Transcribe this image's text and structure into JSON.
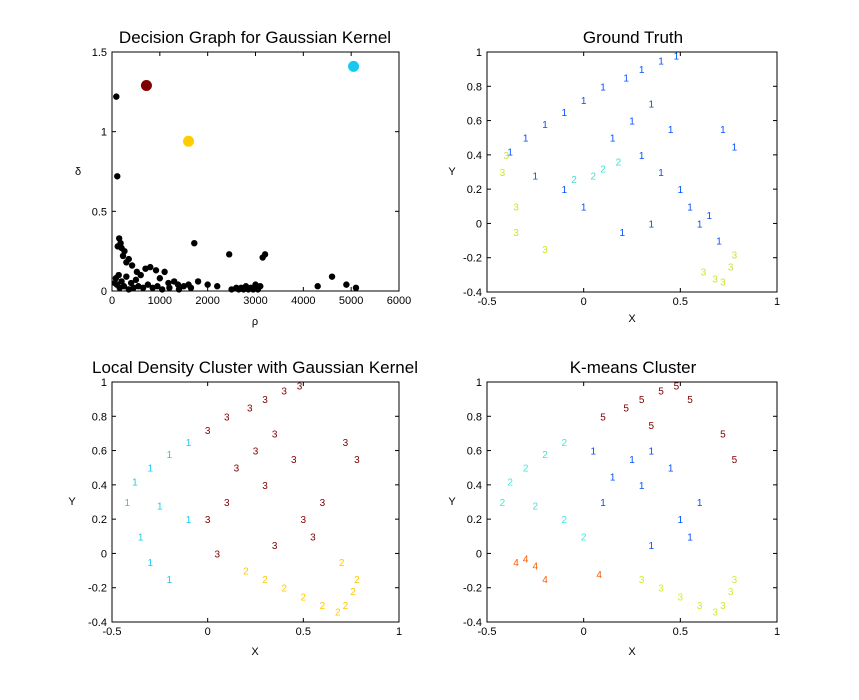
{
  "chart_data": [
    {
      "id": "decision",
      "type": "scatter",
      "title": "Decision Graph for Gaussian Kernel",
      "xlabel": "ρ",
      "ylabel": "δ",
      "xlim": [
        0,
        6000
      ],
      "ylim": [
        0,
        1.5
      ],
      "xticks": [
        "0",
        "1000",
        "2000",
        "3000",
        "4000",
        "5000",
        "6000"
      ],
      "yticks": [
        "0",
        "0.5",
        "1",
        "1.5"
      ],
      "points": [
        [
          90,
          1.22
        ],
        [
          110,
          0.72
        ],
        [
          120,
          0.28
        ],
        [
          150,
          0.33
        ],
        [
          180,
          0.3
        ],
        [
          200,
          0.27
        ],
        [
          230,
          0.22
        ],
        [
          260,
          0.25
        ],
        [
          300,
          0.18
        ],
        [
          350,
          0.2
        ],
        [
          420,
          0.16
        ],
        [
          520,
          0.12
        ],
        [
          600,
          0.1
        ],
        [
          700,
          0.14
        ],
        [
          800,
          0.15
        ],
        [
          920,
          0.13
        ],
        [
          1000,
          0.08
        ],
        [
          1100,
          0.12
        ],
        [
          1180,
          0.05
        ],
        [
          1300,
          0.06
        ],
        [
          1380,
          0.04
        ],
        [
          1500,
          0.03
        ],
        [
          1600,
          0.04
        ],
        [
          1720,
          0.3
        ],
        [
          1800,
          0.06
        ],
        [
          2000,
          0.04
        ],
        [
          2200,
          0.03
        ],
        [
          2450,
          0.23
        ],
        [
          2600,
          0.02
        ],
        [
          2700,
          0.02
        ],
        [
          2800,
          0.03
        ],
        [
          2900,
          0.02
        ],
        [
          3000,
          0.04
        ],
        [
          3050,
          0.02
        ],
        [
          3100,
          0.03
        ],
        [
          3150,
          0.21
        ],
        [
          3200,
          0.23
        ],
        [
          4300,
          0.03
        ],
        [
          4600,
          0.09
        ],
        [
          4900,
          0.04
        ],
        [
          5100,
          0.02
        ],
        [
          60,
          0.05
        ],
        [
          80,
          0.08
        ],
        [
          100,
          0.04
        ],
        [
          140,
          0.1
        ],
        [
          160,
          0.02
        ],
        [
          200,
          0.06
        ],
        [
          250,
          0.03
        ],
        [
          300,
          0.09
        ],
        [
          350,
          0.01
        ],
        [
          400,
          0.05
        ],
        [
          450,
          0.02
        ],
        [
          500,
          0.07
        ],
        [
          550,
          0.03
        ],
        [
          650,
          0.02
        ],
        [
          750,
          0.04
        ],
        [
          850,
          0.02
        ],
        [
          950,
          0.03
        ],
        [
          1050,
          0.01
        ],
        [
          1200,
          0.02
        ],
        [
          1400,
          0.01
        ],
        [
          1650,
          0.02
        ],
        [
          2500,
          0.01
        ],
        [
          2650,
          0.01
        ],
        [
          2750,
          0.01
        ],
        [
          2850,
          0.01
        ],
        [
          2950,
          0.01
        ],
        [
          3050,
          0.01
        ]
      ],
      "highlight": [
        {
          "x": 720,
          "y": 1.29,
          "color": "#7f0000"
        },
        {
          "x": 1600,
          "y": 0.94,
          "color": "#ffcc00"
        },
        {
          "x": 5050,
          "y": 1.41,
          "color": "#18c8ef"
        }
      ]
    },
    {
      "id": "ground",
      "type": "scatter",
      "title": "Ground Truth",
      "xlabel": "X",
      "ylabel": "Y",
      "xlim": [
        -0.5,
        1
      ],
      "ylim": [
        -0.4,
        1
      ],
      "xticks": [
        "-0.5",
        "0",
        "0.5",
        "1"
      ],
      "yticks": [
        "-0.4",
        "-0.2",
        "0",
        "0.2",
        "0.4",
        "0.6",
        "0.8",
        "1"
      ],
      "labels": [
        {
          "x": 0.48,
          "y": 0.98,
          "t": "1",
          "c": "#0050ff"
        },
        {
          "x": 0.4,
          "y": 0.95,
          "t": "1",
          "c": "#0050ff"
        },
        {
          "x": 0.3,
          "y": 0.9,
          "t": "1",
          "c": "#0050ff"
        },
        {
          "x": 0.22,
          "y": 0.85,
          "t": "1",
          "c": "#0050ff"
        },
        {
          "x": 0.1,
          "y": 0.8,
          "t": "1",
          "c": "#0050ff"
        },
        {
          "x": 0.0,
          "y": 0.72,
          "t": "1",
          "c": "#0050ff"
        },
        {
          "x": -0.1,
          "y": 0.65,
          "t": "1",
          "c": "#0050ff"
        },
        {
          "x": -0.2,
          "y": 0.58,
          "t": "1",
          "c": "#0050ff"
        },
        {
          "x": -0.3,
          "y": 0.5,
          "t": "1",
          "c": "#0050ff"
        },
        {
          "x": -0.38,
          "y": 0.42,
          "t": "1",
          "c": "#0050ff"
        },
        {
          "x": 0.35,
          "y": 0.7,
          "t": "1",
          "c": "#0050ff"
        },
        {
          "x": 0.45,
          "y": 0.55,
          "t": "1",
          "c": "#0050ff"
        },
        {
          "x": 0.25,
          "y": 0.6,
          "t": "1",
          "c": "#0050ff"
        },
        {
          "x": 0.15,
          "y": 0.5,
          "t": "1",
          "c": "#0050ff"
        },
        {
          "x": 0.3,
          "y": 0.4,
          "t": "1",
          "c": "#0050ff"
        },
        {
          "x": 0.5,
          "y": 0.2,
          "t": "1",
          "c": "#0050ff"
        },
        {
          "x": 0.55,
          "y": 0.1,
          "t": "1",
          "c": "#0050ff"
        },
        {
          "x": 0.65,
          "y": 0.05,
          "t": "1",
          "c": "#0050ff"
        },
        {
          "x": 0.72,
          "y": 0.55,
          "t": "1",
          "c": "#0050ff"
        },
        {
          "x": 0.78,
          "y": 0.45,
          "t": "1",
          "c": "#0050ff"
        },
        {
          "x": 0.35,
          "y": 0.0,
          "t": "1",
          "c": "#0050ff"
        },
        {
          "x": 0.2,
          "y": -0.05,
          "t": "1",
          "c": "#0050ff"
        },
        {
          "x": 0.0,
          "y": 0.1,
          "t": "1",
          "c": "#0050ff"
        },
        {
          "x": -0.1,
          "y": 0.2,
          "t": "1",
          "c": "#0050ff"
        },
        {
          "x": -0.25,
          "y": 0.28,
          "t": "1",
          "c": "#0050ff"
        },
        {
          "x": 0.4,
          "y": 0.3,
          "t": "1",
          "c": "#0050ff"
        },
        {
          "x": 0.6,
          "y": 0.0,
          "t": "1",
          "c": "#0050ff"
        },
        {
          "x": 0.7,
          "y": -0.1,
          "t": "1",
          "c": "#0050ff"
        },
        {
          "x": 0.1,
          "y": 0.32,
          "t": "2",
          "c": "#40e0d0"
        },
        {
          "x": 0.05,
          "y": 0.28,
          "t": "2",
          "c": "#40e0d0"
        },
        {
          "x": 0.18,
          "y": 0.36,
          "t": "2",
          "c": "#40e0d0"
        },
        {
          "x": -0.05,
          "y": 0.26,
          "t": "2",
          "c": "#40e0d0"
        },
        {
          "x": -0.4,
          "y": 0.4,
          "t": "3",
          "c": "#c8e630"
        },
        {
          "x": -0.42,
          "y": 0.3,
          "t": "3",
          "c": "#c8e630"
        },
        {
          "x": -0.35,
          "y": 0.1,
          "t": "3",
          "c": "#c8e630"
        },
        {
          "x": -0.35,
          "y": -0.05,
          "t": "3",
          "c": "#c8e630"
        },
        {
          "x": -0.2,
          "y": -0.15,
          "t": "3",
          "c": "#c8e630"
        },
        {
          "x": 0.62,
          "y": -0.28,
          "t": "3",
          "c": "#c8e630"
        },
        {
          "x": 0.68,
          "y": -0.32,
          "t": "3",
          "c": "#c8e630"
        },
        {
          "x": 0.72,
          "y": -0.34,
          "t": "3",
          "c": "#c8e630"
        },
        {
          "x": 0.76,
          "y": -0.25,
          "t": "3",
          "c": "#c8e630"
        },
        {
          "x": 0.78,
          "y": -0.18,
          "t": "3",
          "c": "#c8e630"
        }
      ]
    },
    {
      "id": "ldc",
      "type": "scatter",
      "title": "Local Density Cluster with Gaussian Kernel",
      "xlabel": "X",
      "ylabel": "Y",
      "xlim": [
        -0.5,
        1
      ],
      "ylim": [
        -0.4,
        1
      ],
      "xticks": [
        "-0.5",
        "0",
        "0.5",
        "1"
      ],
      "yticks": [
        "-0.4",
        "-0.2",
        "0",
        "0.2",
        "0.4",
        "0.6",
        "0.8",
        "1"
      ],
      "labels": [
        {
          "x": 0.48,
          "y": 0.98,
          "t": "3",
          "c": "#7f0000"
        },
        {
          "x": 0.4,
          "y": 0.95,
          "t": "3",
          "c": "#7f0000"
        },
        {
          "x": 0.3,
          "y": 0.9,
          "t": "3",
          "c": "#7f0000"
        },
        {
          "x": 0.22,
          "y": 0.85,
          "t": "3",
          "c": "#7f0000"
        },
        {
          "x": 0.1,
          "y": 0.8,
          "t": "3",
          "c": "#7f0000"
        },
        {
          "x": 0.0,
          "y": 0.72,
          "t": "3",
          "c": "#7f0000"
        },
        {
          "x": 0.35,
          "y": 0.7,
          "t": "3",
          "c": "#7f0000"
        },
        {
          "x": 0.45,
          "y": 0.55,
          "t": "3",
          "c": "#7f0000"
        },
        {
          "x": 0.25,
          "y": 0.6,
          "t": "3",
          "c": "#7f0000"
        },
        {
          "x": 0.15,
          "y": 0.5,
          "t": "3",
          "c": "#7f0000"
        },
        {
          "x": 0.3,
          "y": 0.4,
          "t": "3",
          "c": "#7f0000"
        },
        {
          "x": 0.5,
          "y": 0.2,
          "t": "3",
          "c": "#7f0000"
        },
        {
          "x": 0.72,
          "y": 0.65,
          "t": "3",
          "c": "#7f0000"
        },
        {
          "x": 0.78,
          "y": 0.55,
          "t": "3",
          "c": "#7f0000"
        },
        {
          "x": 0.35,
          "y": 0.05,
          "t": "3",
          "c": "#7f0000"
        },
        {
          "x": 0.1,
          "y": 0.3,
          "t": "3",
          "c": "#7f0000"
        },
        {
          "x": 0.0,
          "y": 0.2,
          "t": "3",
          "c": "#7f0000"
        },
        {
          "x": 0.05,
          "y": 0.0,
          "t": "3",
          "c": "#7f0000"
        },
        {
          "x": 0.55,
          "y": 0.1,
          "t": "3",
          "c": "#7f0000"
        },
        {
          "x": 0.6,
          "y": 0.3,
          "t": "3",
          "c": "#7f0000"
        },
        {
          "x": -0.1,
          "y": 0.65,
          "t": "1",
          "c": "#1ec8f0"
        },
        {
          "x": -0.2,
          "y": 0.58,
          "t": "1",
          "c": "#1ec8f0"
        },
        {
          "x": -0.3,
          "y": 0.5,
          "t": "1",
          "c": "#1ec8f0"
        },
        {
          "x": -0.38,
          "y": 0.42,
          "t": "1",
          "c": "#1ec8f0"
        },
        {
          "x": -0.42,
          "y": 0.3,
          "t": "1",
          "c": "#1ec8f0"
        },
        {
          "x": -0.35,
          "y": 0.1,
          "t": "1",
          "c": "#1ec8f0"
        },
        {
          "x": -0.3,
          "y": -0.05,
          "t": "1",
          "c": "#1ec8f0"
        },
        {
          "x": -0.2,
          "y": -0.15,
          "t": "1",
          "c": "#1ec8f0"
        },
        {
          "x": -0.1,
          "y": 0.2,
          "t": "1",
          "c": "#1ec8f0"
        },
        {
          "x": -0.25,
          "y": 0.28,
          "t": "1",
          "c": "#1ec8f0"
        },
        {
          "x": 0.2,
          "y": -0.1,
          "t": "2",
          "c": "#ffc800"
        },
        {
          "x": 0.3,
          "y": -0.15,
          "t": "2",
          "c": "#ffc800"
        },
        {
          "x": 0.4,
          "y": -0.2,
          "t": "2",
          "c": "#ffc800"
        },
        {
          "x": 0.5,
          "y": -0.25,
          "t": "2",
          "c": "#ffc800"
        },
        {
          "x": 0.6,
          "y": -0.3,
          "t": "2",
          "c": "#ffc800"
        },
        {
          "x": 0.68,
          "y": -0.34,
          "t": "2",
          "c": "#ffc800"
        },
        {
          "x": 0.72,
          "y": -0.3,
          "t": "2",
          "c": "#ffc800"
        },
        {
          "x": 0.76,
          "y": -0.22,
          "t": "2",
          "c": "#ffc800"
        },
        {
          "x": 0.78,
          "y": -0.15,
          "t": "2",
          "c": "#ffc800"
        },
        {
          "x": 0.7,
          "y": -0.05,
          "t": "2",
          "c": "#ffc800"
        }
      ]
    },
    {
      "id": "kmeans",
      "type": "scatter",
      "title": "K-means Cluster",
      "xlabel": "X",
      "ylabel": "Y",
      "xlim": [
        -0.5,
        1
      ],
      "ylim": [
        -0.4,
        1
      ],
      "xticks": [
        "-0.5",
        "0",
        "0.5",
        "1"
      ],
      "yticks": [
        "-0.4",
        "-0.2",
        "0",
        "0.2",
        "0.4",
        "0.6",
        "0.8",
        "1"
      ],
      "labels": [
        {
          "x": 0.48,
          "y": 0.98,
          "t": "5",
          "c": "#7f0000"
        },
        {
          "x": 0.4,
          "y": 0.95,
          "t": "5",
          "c": "#7f0000"
        },
        {
          "x": 0.3,
          "y": 0.9,
          "t": "5",
          "c": "#7f0000"
        },
        {
          "x": 0.22,
          "y": 0.85,
          "t": "5",
          "c": "#7f0000"
        },
        {
          "x": 0.1,
          "y": 0.8,
          "t": "5",
          "c": "#7f0000"
        },
        {
          "x": 0.55,
          "y": 0.9,
          "t": "5",
          "c": "#7f0000"
        },
        {
          "x": 0.72,
          "y": 0.7,
          "t": "5",
          "c": "#7f0000"
        },
        {
          "x": 0.78,
          "y": 0.55,
          "t": "5",
          "c": "#7f0000"
        },
        {
          "x": 0.35,
          "y": 0.75,
          "t": "5",
          "c": "#7f0000"
        },
        {
          "x": 0.35,
          "y": 0.6,
          "t": "1",
          "c": "#0050ff"
        },
        {
          "x": 0.45,
          "y": 0.5,
          "t": "1",
          "c": "#0050ff"
        },
        {
          "x": 0.25,
          "y": 0.55,
          "t": "1",
          "c": "#0050ff"
        },
        {
          "x": 0.15,
          "y": 0.45,
          "t": "1",
          "c": "#0050ff"
        },
        {
          "x": 0.3,
          "y": 0.4,
          "t": "1",
          "c": "#0050ff"
        },
        {
          "x": 0.5,
          "y": 0.2,
          "t": "1",
          "c": "#0050ff"
        },
        {
          "x": 0.55,
          "y": 0.1,
          "t": "1",
          "c": "#0050ff"
        },
        {
          "x": 0.6,
          "y": 0.3,
          "t": "1",
          "c": "#0050ff"
        },
        {
          "x": 0.1,
          "y": 0.3,
          "t": "1",
          "c": "#0050ff"
        },
        {
          "x": 0.35,
          "y": 0.05,
          "t": "1",
          "c": "#0050ff"
        },
        {
          "x": 0.05,
          "y": 0.6,
          "t": "1",
          "c": "#0050ff"
        },
        {
          "x": -0.1,
          "y": 0.65,
          "t": "2",
          "c": "#40e8d8"
        },
        {
          "x": -0.2,
          "y": 0.58,
          "t": "2",
          "c": "#40e8d8"
        },
        {
          "x": -0.3,
          "y": 0.5,
          "t": "2",
          "c": "#40e8d8"
        },
        {
          "x": -0.38,
          "y": 0.42,
          "t": "2",
          "c": "#40e8d8"
        },
        {
          "x": -0.42,
          "y": 0.3,
          "t": "2",
          "c": "#40e8d8"
        },
        {
          "x": -0.25,
          "y": 0.28,
          "t": "2",
          "c": "#40e8d8"
        },
        {
          "x": -0.1,
          "y": 0.2,
          "t": "2",
          "c": "#40e8d8"
        },
        {
          "x": 0.0,
          "y": 0.1,
          "t": "2",
          "c": "#40e8d8"
        },
        {
          "x": -0.35,
          "y": -0.05,
          "t": "4",
          "c": "#ff5a00"
        },
        {
          "x": -0.3,
          "y": -0.03,
          "t": "4",
          "c": "#ff5a00"
        },
        {
          "x": -0.25,
          "y": -0.07,
          "t": "4",
          "c": "#ff5a00"
        },
        {
          "x": -0.2,
          "y": -0.15,
          "t": "4",
          "c": "#ff5a00"
        },
        {
          "x": 0.08,
          "y": -0.12,
          "t": "4",
          "c": "#ff5a00"
        },
        {
          "x": 0.3,
          "y": -0.15,
          "t": "3",
          "c": "#c8f030"
        },
        {
          "x": 0.4,
          "y": -0.2,
          "t": "3",
          "c": "#c8f030"
        },
        {
          "x": 0.5,
          "y": -0.25,
          "t": "3",
          "c": "#c8f030"
        },
        {
          "x": 0.6,
          "y": -0.3,
          "t": "3",
          "c": "#c8f030"
        },
        {
          "x": 0.68,
          "y": -0.34,
          "t": "3",
          "c": "#c8f030"
        },
        {
          "x": 0.72,
          "y": -0.3,
          "t": "3",
          "c": "#c8f030"
        },
        {
          "x": 0.76,
          "y": -0.22,
          "t": "3",
          "c": "#c8f030"
        },
        {
          "x": 0.78,
          "y": -0.15,
          "t": "3",
          "c": "#c8f030"
        }
      ]
    }
  ]
}
